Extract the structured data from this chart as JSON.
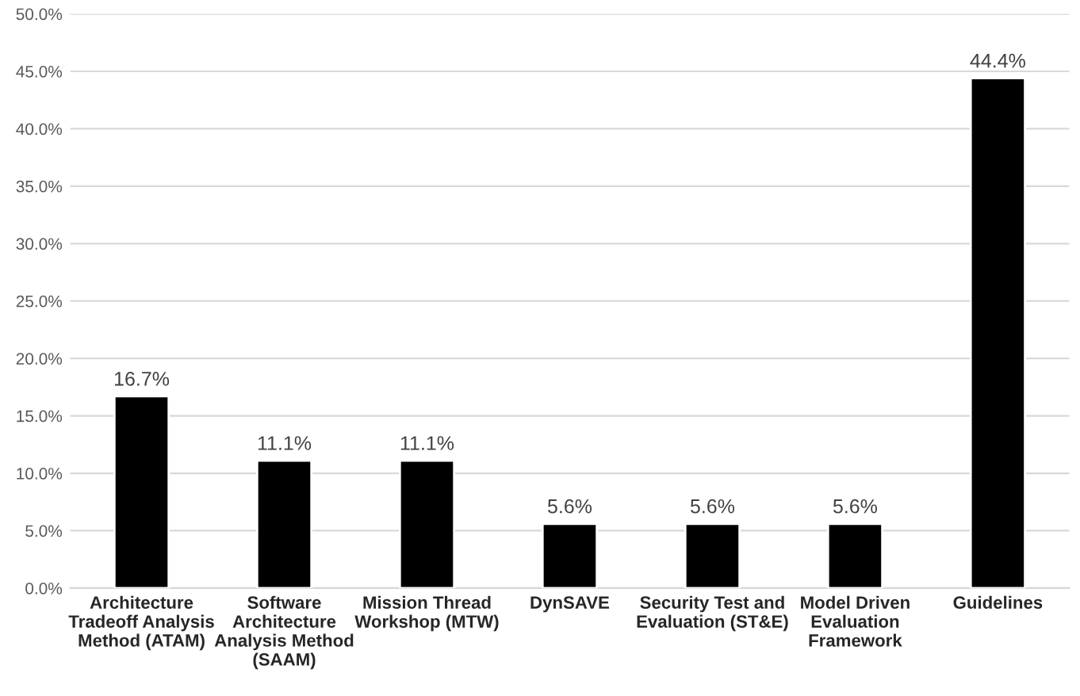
{
  "chart_data": {
    "type": "bar",
    "categories": [
      "Architecture\nTradeoff Analysis\nMethod (ATAM)",
      "Software\nArchitecture\nAnalysis Method\n(SAAM)",
      "Mission Thread\nWorkshop (MTW)",
      "DynSAVE",
      "Security Test and\nEvaluation (ST&E)",
      "Model Driven\nEvaluation\nFramework",
      "Guidelines"
    ],
    "values": [
      16.7,
      11.1,
      11.1,
      5.6,
      5.6,
      5.6,
      44.4
    ],
    "value_labels": [
      "16.7%",
      "11.1%",
      "11.1%",
      "5.6%",
      "5.6%",
      "5.6%",
      "44.4%"
    ],
    "color": "#000000",
    "ylim": [
      0,
      50
    ],
    "yticks": [
      {
        "value": 0,
        "label": "0.0%"
      },
      {
        "value": 5,
        "label": "5.0%"
      },
      {
        "value": 10,
        "label": "10.0%"
      },
      {
        "value": 15,
        "label": "15.0%"
      },
      {
        "value": 20,
        "label": "20.0%"
      },
      {
        "value": 25,
        "label": "25.0%"
      },
      {
        "value": 30,
        "label": "30.0%"
      },
      {
        "value": 35,
        "label": "35.0%"
      },
      {
        "value": 40,
        "label": "40.0%"
      },
      {
        "value": 45,
        "label": "45.0%"
      },
      {
        "value": 50,
        "label": "50.0%"
      }
    ],
    "grid": "y"
  }
}
